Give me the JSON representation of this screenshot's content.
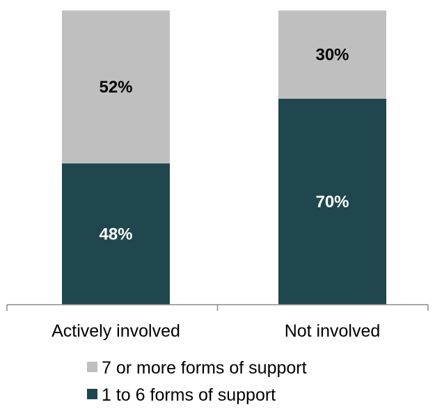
{
  "chart_data": {
    "type": "bar",
    "stacked": true,
    "percent": true,
    "categories": [
      "Actively involved",
      "Not involved"
    ],
    "series": [
      {
        "name": "1 to 6 forms of support",
        "values": [
          48,
          70
        ],
        "labels": [
          "48%",
          "70%"
        ],
        "color": "#1F474D",
        "label_color": "#ffffff"
      },
      {
        "name": "7 or more forms of support",
        "values": [
          52,
          30
        ],
        "labels": [
          "52%",
          "30%"
        ],
        "color": "#BFBFBF",
        "label_color": "#000000"
      }
    ],
    "ylim": [
      0,
      100
    ],
    "legend_order": [
      1,
      0
    ],
    "legend_position": "bottom",
    "grid": false,
    "title": "",
    "xlabel": "",
    "ylabel": ""
  }
}
